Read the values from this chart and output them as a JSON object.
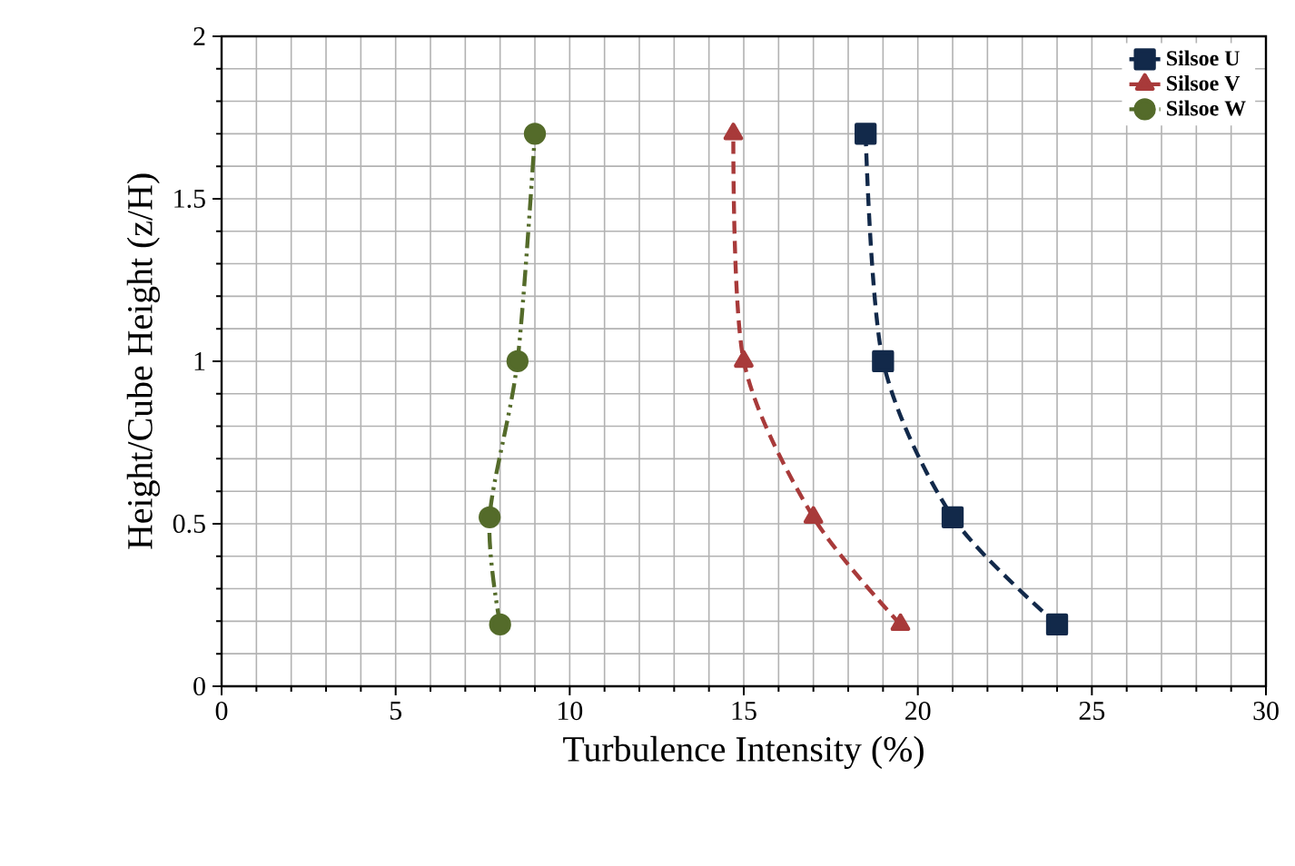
{
  "chart_data": {
    "type": "line",
    "xlabel": "Turbulence Intensity (%)",
    "ylabel": "Height/Cube Height (z/H)",
    "xlim": [
      0,
      30
    ],
    "xticks": [
      0,
      5,
      10,
      15,
      20,
      25,
      30
    ],
    "ylim": [
      0,
      2
    ],
    "yticks": [
      0,
      0.5,
      1,
      1.5,
      2
    ],
    "grid": true,
    "legend": "top right",
    "series": [
      {
        "name": "Silsoe U",
        "color": "#12294a",
        "marker": "square",
        "line_style": "dashed",
        "x": [
          24,
          21,
          19,
          18.5
        ],
        "values": [
          0.19,
          0.52,
          1.0,
          1.7
        ]
      },
      {
        "name": "Silsoe V",
        "color": "#a83a3a",
        "marker": "triangle",
        "line_style": "dashed",
        "x": [
          19.5,
          17,
          15,
          14.7
        ],
        "values": [
          0.19,
          0.52,
          1.0,
          1.7
        ]
      },
      {
        "name": "Silsoe W",
        "color": "#546b2a",
        "marker": "circle",
        "line_style": "dotted",
        "x": [
          8,
          7.7,
          8.5,
          9
        ],
        "values": [
          0.19,
          0.52,
          1.0,
          1.7
        ]
      }
    ]
  }
}
